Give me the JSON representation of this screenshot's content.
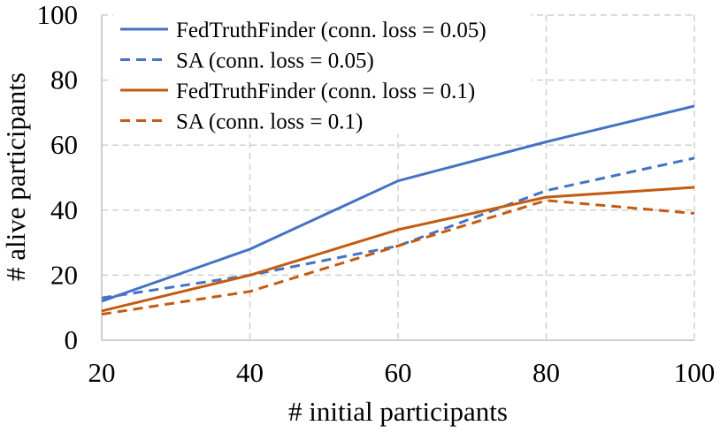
{
  "chart_data": {
    "type": "line",
    "xlabel": "# initial participants",
    "ylabel": "# alive participants",
    "x": [
      20,
      40,
      60,
      80,
      100
    ],
    "xlim": [
      20,
      100
    ],
    "ylim": [
      0,
      100
    ],
    "yticks": [
      0,
      20,
      40,
      60,
      80,
      100
    ],
    "grid": true,
    "legend_position": "top-left",
    "series": [
      {
        "name": "FedTruthFinder (conn. loss = 0.05)",
        "values": [
          12,
          28,
          49,
          61,
          72
        ],
        "color": "#4472c4",
        "dash": "solid"
      },
      {
        "name": "SA (conn. loss = 0.05)",
        "values": [
          13,
          20,
          29,
          46,
          56
        ],
        "color": "#4472c4",
        "dash": "dashed"
      },
      {
        "name": "FedTruthFinder (conn. loss = 0.1)",
        "values": [
          9,
          20,
          34,
          44,
          47
        ],
        "color": "#c55a11",
        "dash": "solid"
      },
      {
        "name": "SA (conn. loss = 0.1)",
        "values": [
          8,
          15,
          29,
          43,
          39
        ],
        "color": "#c55a11",
        "dash": "dashed"
      }
    ]
  }
}
